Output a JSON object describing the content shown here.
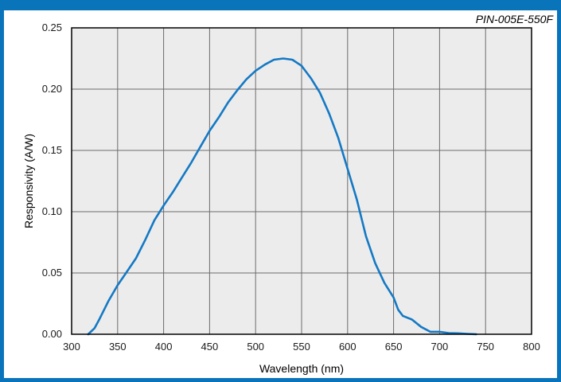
{
  "colors": {
    "frame": "#0a74bb",
    "plot_background": "#ececec",
    "grid": "#6b6b6b",
    "curve": "#1479c4"
  },
  "chart_data": {
    "type": "line",
    "title": "PIN-005E-550F",
    "xlabel": "Wavelength (nm)",
    "ylabel": "Responsivity (A/W)",
    "xlim": [
      300,
      800
    ],
    "ylim": [
      0,
      0.25
    ],
    "grid": true,
    "legend": "none",
    "x_ticks": [
      "300",
      "350",
      "400",
      "450",
      "500",
      "550",
      "600",
      "650",
      "700",
      "750",
      "800"
    ],
    "y_ticks": [
      "0.00",
      "0.05",
      "0.10",
      "0.15",
      "0.20",
      "0.25"
    ],
    "series": [
      {
        "x": [
          318,
          325,
          330,
          340,
          350,
          360,
          370,
          380,
          390,
          400,
          410,
          420,
          430,
          440,
          450,
          460,
          470,
          480,
          490,
          500,
          510,
          520,
          530,
          540,
          550,
          560,
          570,
          580,
          590,
          600,
          610,
          620,
          630,
          640,
          650,
          655,
          660,
          670,
          680,
          690,
          700,
          710,
          720,
          730,
          740
        ],
        "y": [
          0.0,
          0.005,
          0.012,
          0.027,
          0.04,
          0.051,
          0.062,
          0.077,
          0.093,
          0.105,
          0.116,
          0.128,
          0.14,
          0.153,
          0.166,
          0.177,
          0.189,
          0.199,
          0.208,
          0.215,
          0.22,
          0.224,
          0.225,
          0.224,
          0.219,
          0.209,
          0.197,
          0.18,
          0.16,
          0.135,
          0.11,
          0.08,
          0.058,
          0.042,
          0.03,
          0.02,
          0.015,
          0.012,
          0.006,
          0.002,
          0.002,
          0.001,
          0.0008,
          0.0003,
          0.0
        ]
      }
    ]
  }
}
